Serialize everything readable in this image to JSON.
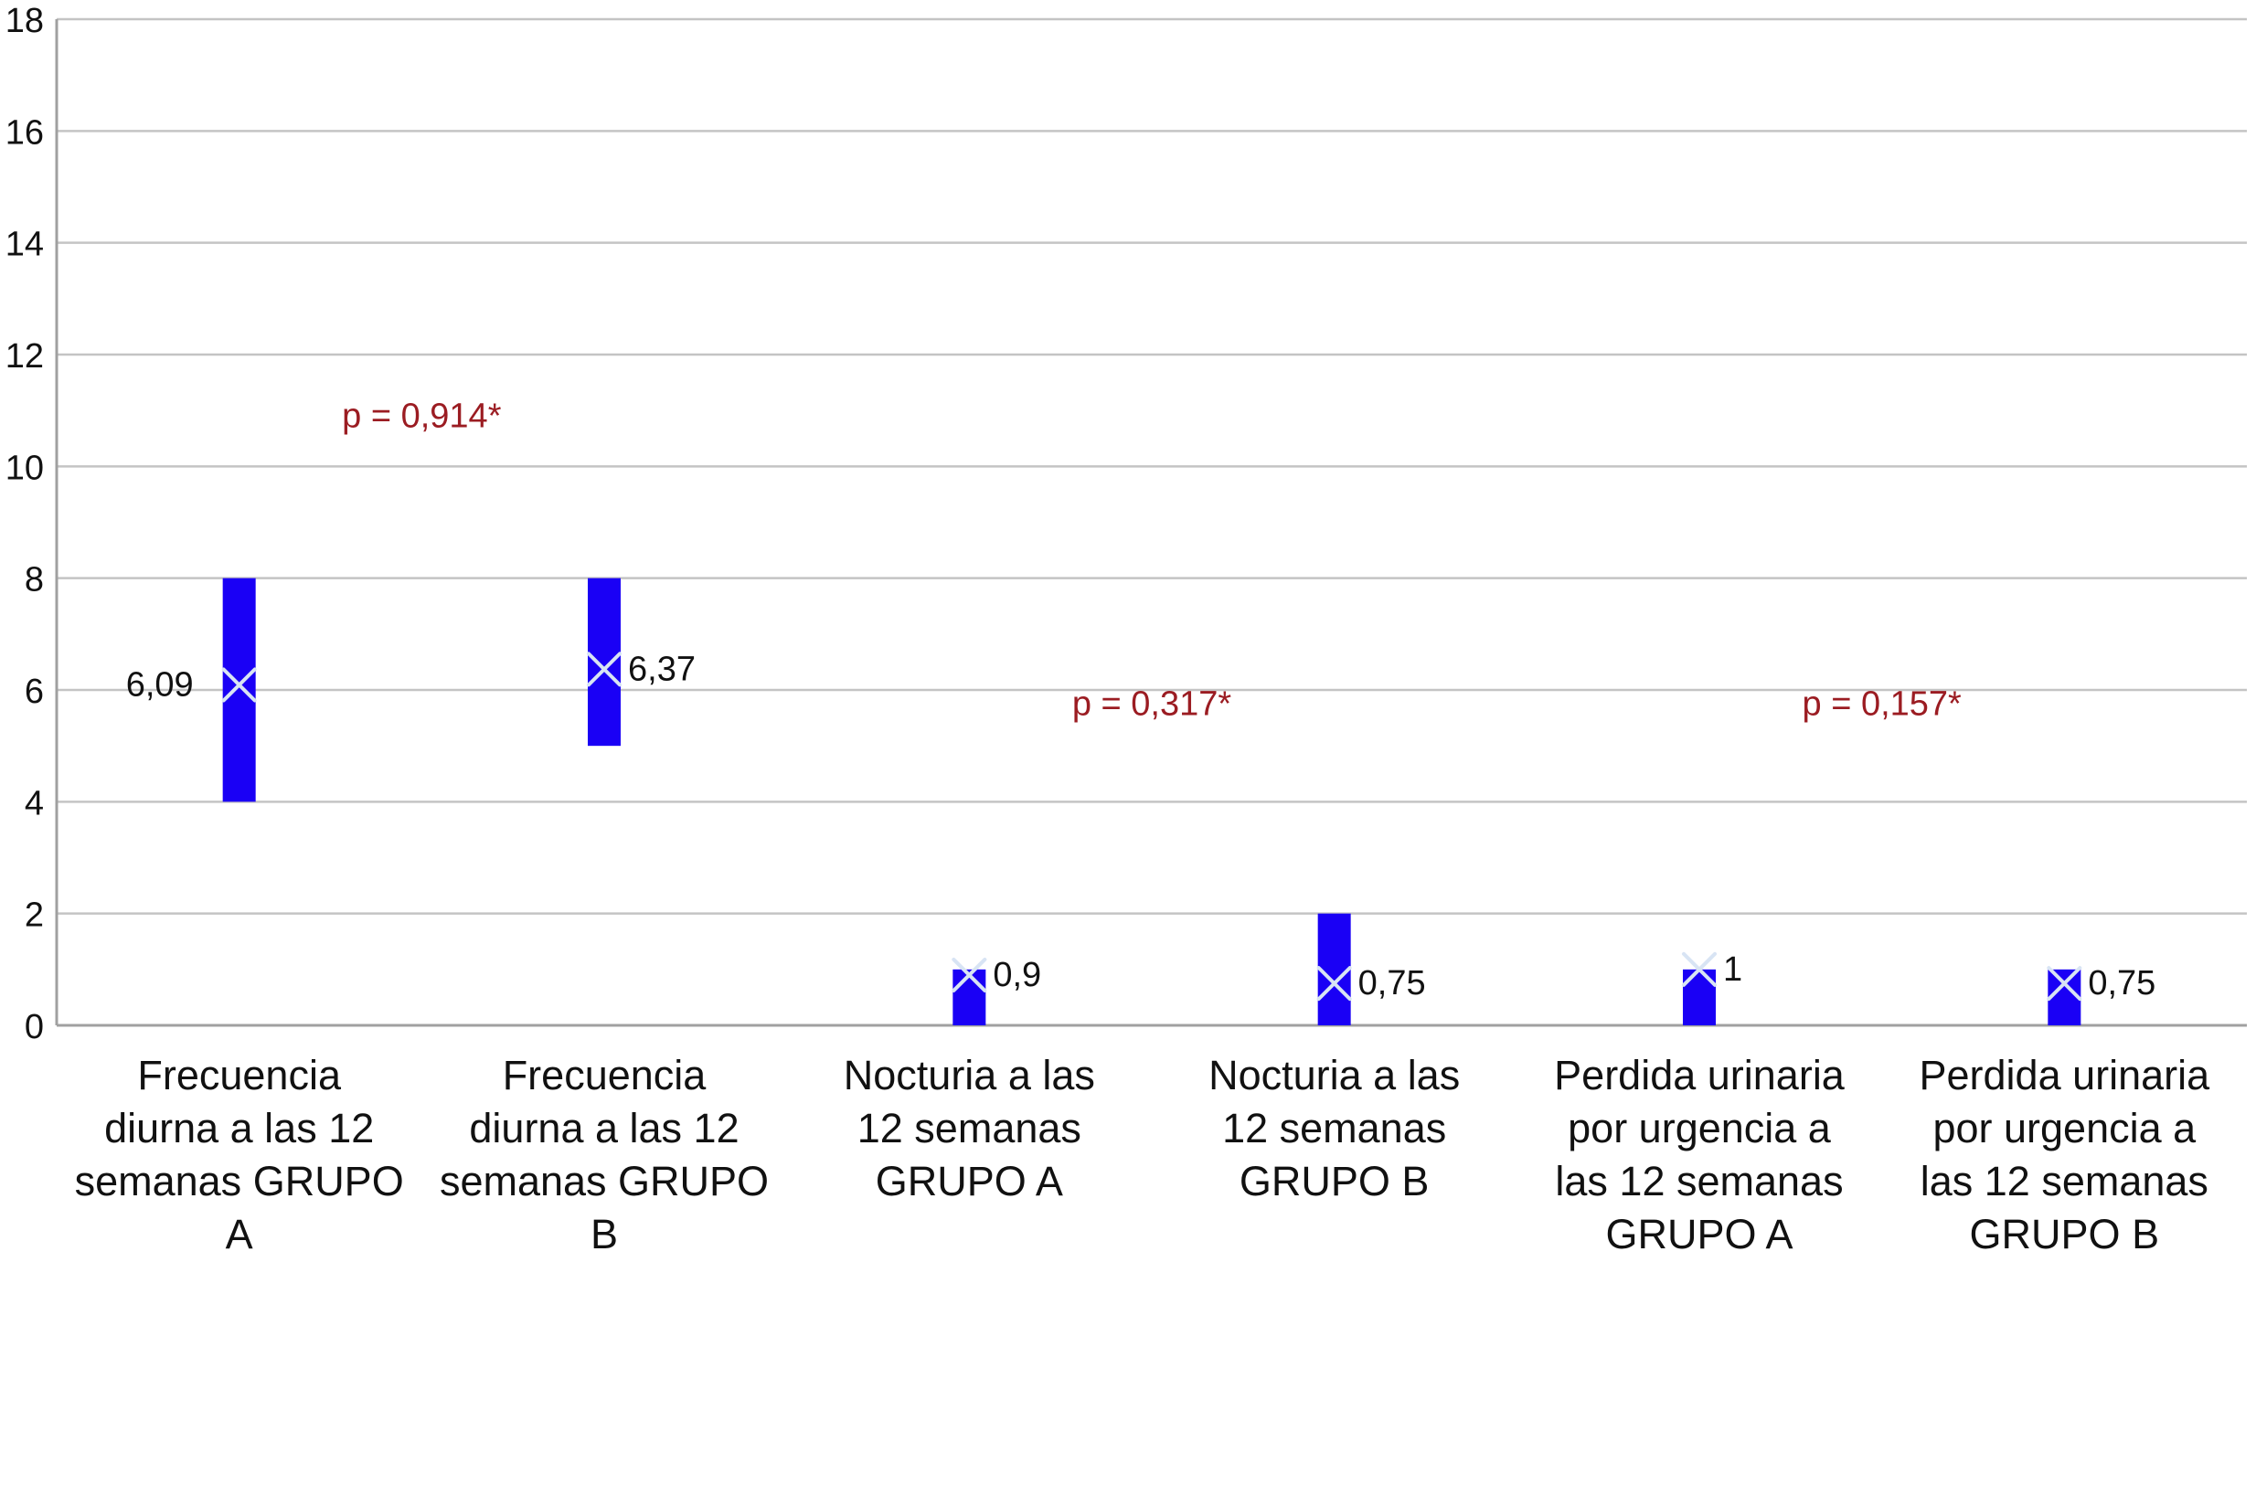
{
  "chart_data": {
    "type": "box",
    "title": "",
    "xlabel": "",
    "ylabel": "",
    "ylim": [
      0,
      18
    ],
    "yticks": [
      0,
      2,
      4,
      6,
      8,
      10,
      12,
      14,
      16,
      18
    ],
    "grid": true,
    "legend": "none",
    "categories": [
      {
        "lines": [
          "Frecuencia",
          "diurna a las 12",
          "semanas GRUPO",
          "A"
        ]
      },
      {
        "lines": [
          "Frecuencia",
          "diurna a las 12",
          "semanas GRUPO",
          "B"
        ]
      },
      {
        "lines": [
          "Nocturia a las",
          "12 semanas",
          "GRUPO A"
        ]
      },
      {
        "lines": [
          "Nocturia a las",
          "12 semanas",
          "GRUPO B"
        ]
      },
      {
        "lines": [
          "Perdida urinaria",
          "por urgencia a",
          "las 12 semanas",
          "GRUPO A"
        ]
      },
      {
        "lines": [
          "Perdida urinaria",
          "por urgencia a",
          "las 12 semanas",
          "GRUPO B"
        ]
      }
    ],
    "series": [
      {
        "low": 4,
        "high": 8,
        "mean": 6.09,
        "label": "6,09",
        "label_side": "left"
      },
      {
        "low": 5,
        "high": 8,
        "mean": 6.37,
        "label": "6,37",
        "label_side": "right"
      },
      {
        "low": 0,
        "high": 1,
        "mean": 0.9,
        "label": "0,9",
        "label_side": "right"
      },
      {
        "low": 0,
        "high": 2,
        "mean": 0.75,
        "label": "0,75",
        "label_side": "right"
      },
      {
        "low": 0,
        "high": 1,
        "mean": 1,
        "label": "1",
        "label_side": "right"
      },
      {
        "low": 0,
        "high": 1,
        "mean": 0.75,
        "label": "0,75",
        "label_side": "right"
      }
    ],
    "annotations": [
      {
        "text": "p = 0,914*",
        "between": [
          0,
          1
        ],
        "y": 10.7
      },
      {
        "text": "p = 0,317*",
        "between": [
          2,
          3
        ],
        "y": 5.55
      },
      {
        "text": "p = 0,157*",
        "between": [
          4,
          5
        ],
        "y": 5.55
      }
    ],
    "colors": {
      "bar": "#1a00f5",
      "marker": "#d8e4f4",
      "grid": "#c4c4c4",
      "axis": "#a0a0a0",
      "annotation": "#9b1c22",
      "text": "#111111"
    }
  }
}
